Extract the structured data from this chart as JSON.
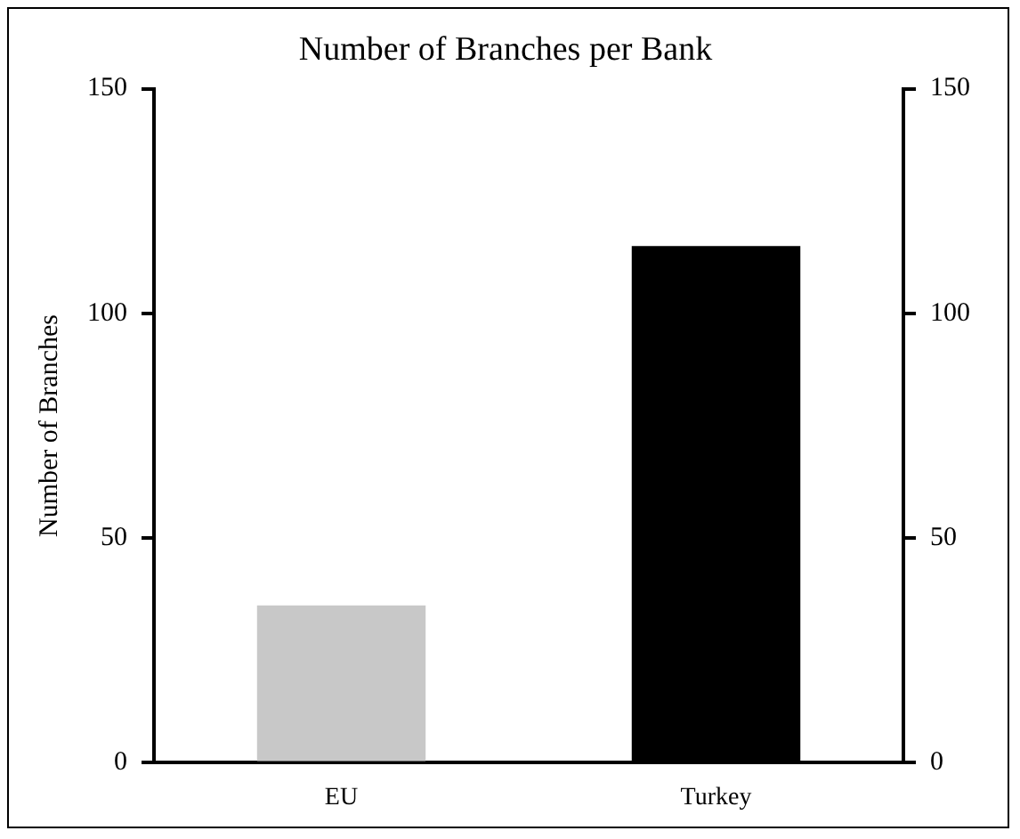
{
  "chart_data": {
    "type": "bar",
    "title": "Number of Branches per Bank",
    "ylabel": "Number of Branches",
    "categories": [
      "EU",
      "Turkey"
    ],
    "values": [
      35,
      115
    ],
    "colors": [
      "#c8c8c8",
      "#000000"
    ],
    "ylim": [
      0,
      150
    ],
    "yticks": [
      0,
      50,
      100,
      150
    ],
    "y2lim": [
      0,
      150
    ],
    "y2ticks": [
      0,
      50,
      100,
      150
    ],
    "grid": false,
    "legend": false
  }
}
